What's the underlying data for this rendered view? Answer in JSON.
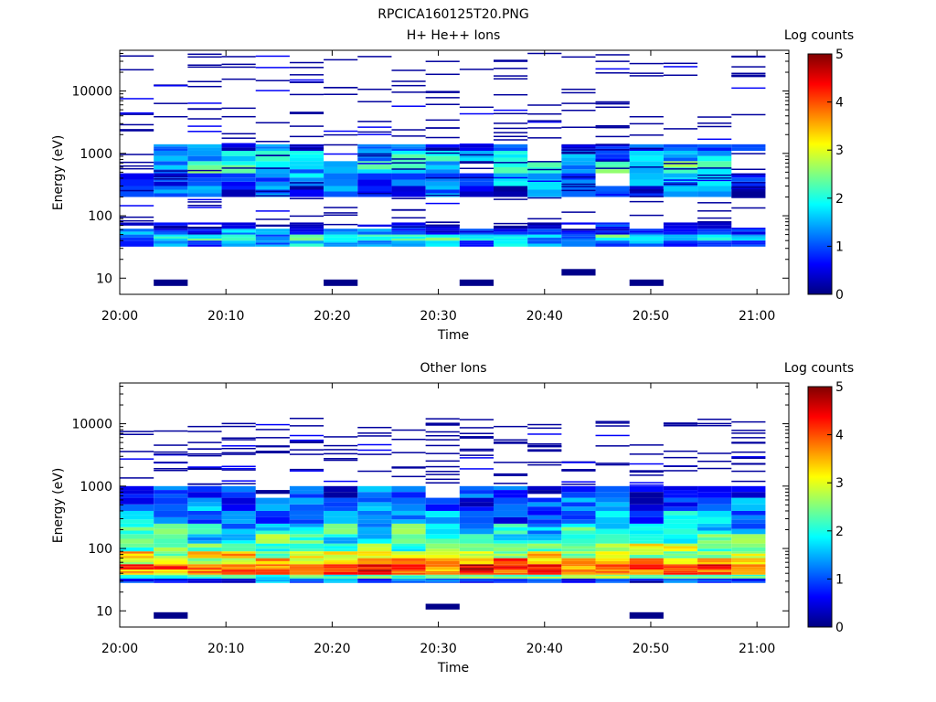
{
  "figure_title": "RPCICA160125T20.PNG",
  "colorscale": {
    "stops": [
      "#000080",
      "#0000ff",
      "#0080ff",
      "#00ffff",
      "#80ff80",
      "#ffff00",
      "#ff8000",
      "#ff0000",
      "#800000"
    ]
  },
  "chart_data": [
    {
      "type": "heatmap",
      "title": "H+ He++ Ions",
      "xlabel": "Time",
      "ylabel": "Energy (eV)",
      "x_ticks": [
        "20:00",
        "20:10",
        "20:20",
        "20:30",
        "20:40",
        "20:50",
        "21:00"
      ],
      "x_tick_values_min": [
        0,
        10,
        20,
        30,
        40,
        50,
        60
      ],
      "xlim_min": [
        0,
        63
      ],
      "y_scale": "log",
      "ylim": [
        5.5,
        45000
      ],
      "y_ticks": [
        "10",
        "100",
        "1000",
        "10000"
      ],
      "y_tick_values": [
        10,
        100,
        1000,
        10000
      ],
      "colorbar": {
        "label": "Log counts",
        "range": [
          0,
          5
        ],
        "ticks": [
          "0",
          "1",
          "2",
          "3",
          "4",
          "5"
        ]
      },
      "time_columns_start_min": [
        0,
        3.2,
        6.4,
        9.6,
        12.8,
        16,
        19.2,
        22.4,
        25.6,
        28.8,
        32,
        35.2,
        38.4,
        41.6,
        44.8,
        48,
        51.2,
        54.4,
        57.6
      ],
      "column_width_min": 3.2,
      "bands": [
        {
          "lo": 32,
          "hi": 40,
          "v": 1.2
        },
        {
          "lo": 40,
          "hi": 50,
          "v": 1.7
        },
        {
          "lo": 50,
          "hi": 62,
          "v": 1.0
        },
        {
          "lo": 62,
          "hi": 78,
          "v": 0.3
        },
        {
          "lo": 200,
          "hi": 300,
          "v": 0.8
        },
        {
          "lo": 300,
          "hi": 480,
          "v": 1.3
        },
        {
          "lo": 480,
          "hi": 750,
          "v": 1.9
        },
        {
          "lo": 750,
          "hi": 1100,
          "v": 1.6
        },
        {
          "lo": 1100,
          "hi": 1400,
          "v": 0.9
        }
      ],
      "speckle_count": 260,
      "speckle_range": [
        60,
        40000
      ],
      "isolated_low": [
        {
          "col": 1,
          "lo": 7.5,
          "hi": 9.5
        },
        {
          "col": 6,
          "lo": 7.5,
          "hi": 9.5
        },
        {
          "col": 10,
          "lo": 7.5,
          "hi": 9.5
        },
        {
          "col": 13,
          "lo": 11,
          "hi": 14
        },
        {
          "col": 15,
          "lo": 7.5,
          "hi": 9.5
        }
      ]
    },
    {
      "type": "heatmap",
      "title": "Other Ions",
      "xlabel": "Time",
      "ylabel": "Energy (eV)",
      "x_ticks": [
        "20:00",
        "20:10",
        "20:20",
        "20:30",
        "20:40",
        "20:50",
        "21:00"
      ],
      "x_tick_values_min": [
        0,
        10,
        20,
        30,
        40,
        50,
        60
      ],
      "xlim_min": [
        0,
        63
      ],
      "y_scale": "log",
      "ylim": [
        5.5,
        45000
      ],
      "y_ticks": [
        "10",
        "100",
        "1000",
        "10000"
      ],
      "y_tick_values": [
        10,
        100,
        1000,
        10000
      ],
      "colorbar": {
        "label": "Log counts",
        "range": [
          0,
          5
        ],
        "ticks": [
          "0",
          "1",
          "2",
          "3",
          "4",
          "5"
        ]
      },
      "time_columns_start_min": [
        0,
        3.2,
        6.4,
        9.6,
        12.8,
        16,
        19.2,
        22.4,
        25.6,
        28.8,
        32,
        35.2,
        38.4,
        41.6,
        44.8,
        48,
        51.2,
        54.4,
        57.6
      ],
      "column_width_min": 3.2,
      "bands": [
        {
          "lo": 28,
          "hi": 33,
          "v": 1.0
        },
        {
          "lo": 33,
          "hi": 38,
          "v": 2.4
        },
        {
          "lo": 38,
          "hi": 46,
          "v": 4.1
        },
        {
          "lo": 46,
          "hi": 56,
          "v": 4.2
        },
        {
          "lo": 56,
          "hi": 70,
          "v": 3.6
        },
        {
          "lo": 70,
          "hi": 90,
          "v": 2.9
        },
        {
          "lo": 90,
          "hi": 120,
          "v": 2.5
        },
        {
          "lo": 120,
          "hi": 170,
          "v": 2.1
        },
        {
          "lo": 170,
          "hi": 250,
          "v": 1.8
        },
        {
          "lo": 250,
          "hi": 400,
          "v": 1.4
        },
        {
          "lo": 400,
          "hi": 650,
          "v": 1.1
        },
        {
          "lo": 650,
          "hi": 1000,
          "v": 0.7
        }
      ],
      "speckle_count": 170,
      "speckle_range": [
        1000,
        12000
      ],
      "isolated_low": [
        {
          "col": 1,
          "lo": 7.5,
          "hi": 9.5
        },
        {
          "col": 9,
          "lo": 10.5,
          "hi": 13
        },
        {
          "col": 15,
          "lo": 7.5,
          "hi": 9.5
        }
      ]
    }
  ]
}
